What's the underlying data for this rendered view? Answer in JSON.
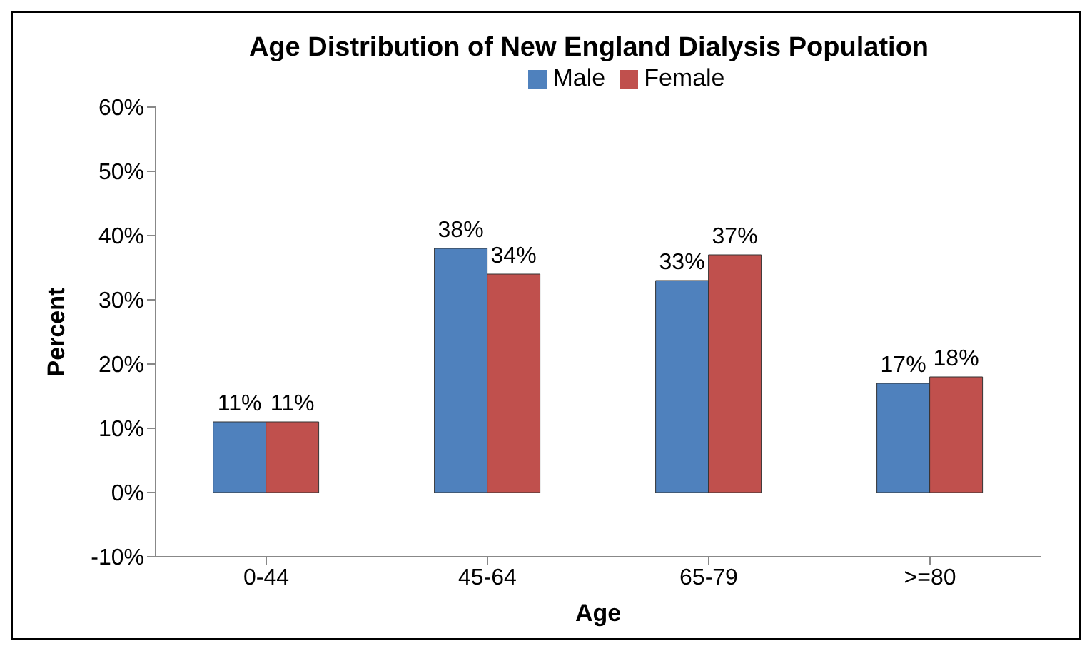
{
  "chart_data": {
    "type": "bar",
    "title": "Age Distribution of New England Dialysis Population",
    "xlabel": "Age",
    "ylabel": "Percent",
    "categories": [
      "0-44",
      "45-64",
      "65-79",
      ">=80"
    ],
    "series": [
      {
        "name": "Male",
        "color": "#4f81bd",
        "values": [
          11,
          38,
          33,
          17
        ],
        "value_labels": [
          "11%",
          "38%",
          "33%",
          "17%"
        ]
      },
      {
        "name": "Female",
        "color": "#c0504d",
        "values": [
          11,
          34,
          37,
          18
        ],
        "value_labels": [
          "11%",
          "34%",
          "37%",
          "18%"
        ]
      }
    ],
    "ylim": [
      -10,
      60
    ],
    "yticks": [
      {
        "value": -10,
        "label": "-10%"
      },
      {
        "value": 0,
        "label": "0%"
      },
      {
        "value": 10,
        "label": "10%"
      },
      {
        "value": 20,
        "label": "20%"
      },
      {
        "value": 30,
        "label": "30%"
      },
      {
        "value": 40,
        "label": "40%"
      },
      {
        "value": 50,
        "label": "50%"
      },
      {
        "value": 60,
        "label": "60%"
      }
    ],
    "legend": "top",
    "grid": false
  }
}
